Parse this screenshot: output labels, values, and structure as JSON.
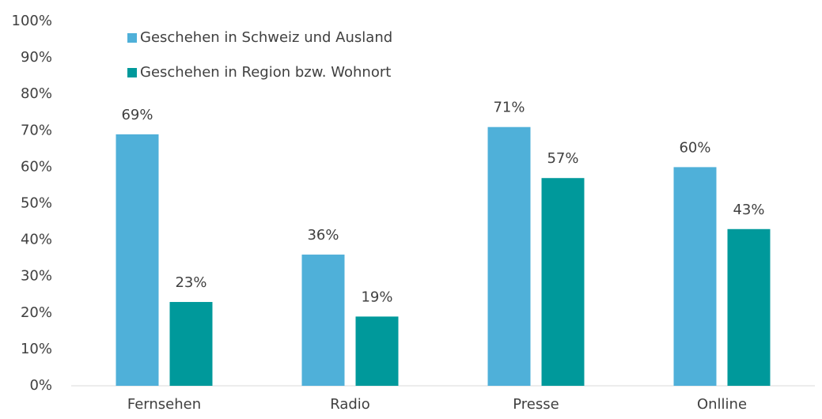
{
  "chart_data": {
    "type": "bar",
    "categories": [
      "Fernsehen",
      "Radio",
      "Presse",
      "Onlline"
    ],
    "series": [
      {
        "name": "Geschehen in Schweiz und Ausland",
        "color": "#4fb0d9",
        "values": [
          69,
          36,
          71,
          60
        ],
        "value_labels": [
          "69%",
          "36%",
          "71%",
          "60%"
        ]
      },
      {
        "name": "Geschehen in Region bzw. Wohnort",
        "color": "#00999b",
        "values": [
          23,
          19,
          57,
          43
        ],
        "value_labels": [
          "23%",
          "19%",
          "57%",
          "43%"
        ]
      }
    ],
    "ylim": [
      0,
      100
    ],
    "yticks": [
      {
        "value": 0,
        "label": "0%"
      },
      {
        "value": 10,
        "label": "10%"
      },
      {
        "value": 20,
        "label": "20%"
      },
      {
        "value": 30,
        "label": "30%"
      },
      {
        "value": 40,
        "label": "40%"
      },
      {
        "value": 50,
        "label": "50%"
      },
      {
        "value": 60,
        "label": "60%"
      },
      {
        "value": 70,
        "label": "70%"
      },
      {
        "value": 80,
        "label": "80%"
      },
      {
        "value": 90,
        "label": "90%"
      },
      {
        "value": 100,
        "label": "100%"
      }
    ],
    "grid": false,
    "legend": "top-left"
  }
}
